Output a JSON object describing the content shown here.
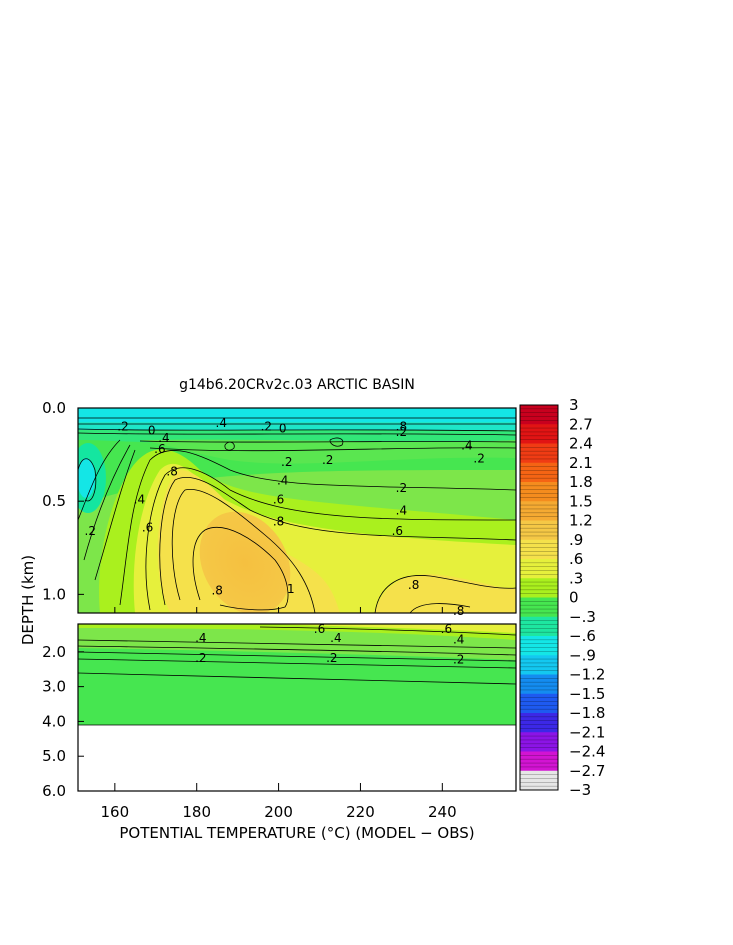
{
  "chart_data": {
    "type": "heatmap",
    "title": "g14b6.20CRv2c.03 ARCTIC BASIN",
    "xlabel": "POTENTIAL TEMPERATURE (°C) (MODEL − OBS)",
    "ylabel": "DEPTH (km)",
    "xlim": [
      151,
      258
    ],
    "x_ticks": [
      "160",
      "180",
      "200",
      "220",
      "240"
    ],
    "x_tick_values": [
      160,
      180,
      200,
      220,
      240
    ],
    "upper_panel": {
      "ylim": [
        0.0,
        1.1
      ],
      "y_ticks": [
        "0.0",
        "0.5",
        "1.0"
      ],
      "y_tick_values": [
        0.0,
        0.5,
        1.0
      ]
    },
    "lower_panel": {
      "ylim": [
        1.2,
        6.0
      ],
      "y_ticks": [
        "2.0",
        "3.0",
        "4.0",
        "5.0",
        "6.0"
      ],
      "y_tick_values": [
        2.0,
        3.0,
        4.0,
        5.0,
        6.0
      ],
      "data_bottom_depth": 4.0
    },
    "colorbar": {
      "labels": [
        "3",
        "2.7",
        "2.4",
        "2.1",
        "1.8",
        "1.5",
        "1.2",
        ".9",
        ".6",
        ".3",
        "0",
        "−.3",
        "−.6",
        "−.9",
        "−1.2",
        "−1.5",
        "−1.8",
        "−2.1",
        "−2.4",
        "−2.7",
        "−3"
      ],
      "values": [
        3.0,
        2.7,
        2.4,
        2.1,
        1.8,
        1.5,
        1.2,
        0.9,
        0.6,
        0.3,
        0.0,
        -0.3,
        -0.6,
        -0.9,
        -1.2,
        -1.5,
        -1.8,
        -2.1,
        -2.4,
        -2.7,
        -3.0
      ],
      "segment_colors": [
        "#c8001e",
        "#e11414",
        "#f03c14",
        "#f56414",
        "#f58c1e",
        "#f5aa32",
        "#f5c846",
        "#f5e14b",
        "#e6f03c",
        "#aaf01e",
        "#46e650",
        "#1ee6a0",
        "#14e6e6",
        "#14c8f0",
        "#148cf0",
        "#1e5af0",
        "#3c28e6",
        "#8c14e6",
        "#d214d2",
        "#e6e6e6",
        "#8c8c8c"
      ]
    },
    "contour_labels_upper": [
      {
        "text": ".4",
        "x": 166,
        "y": 0.49
      },
      {
        "text": ".2",
        "x": 154,
        "y": 0.66
      },
      {
        "text": ".6",
        "x": 168,
        "y": 0.64
      },
      {
        "text": ".8",
        "x": 174,
        "y": 0.34
      },
      {
        "text": ".8",
        "x": 185,
        "y": 0.98
      },
      {
        "text": "1",
        "x": 203,
        "y": 0.97
      },
      {
        "text": ".8",
        "x": 200,
        "y": 0.61
      },
      {
        "text": ".6",
        "x": 200,
        "y": 0.49
      },
      {
        "text": ".4",
        "x": 201,
        "y": 0.39
      },
      {
        "text": ".2",
        "x": 202,
        "y": 0.29
      },
      {
        "text": ".6",
        "x": 229,
        "y": 0.66
      },
      {
        "text": ".4",
        "x": 230,
        "y": 0.55
      },
      {
        "text": ".2",
        "x": 230,
        "y": 0.43
      },
      {
        "text": ".8",
        "x": 233,
        "y": 0.95
      },
      {
        "text": ".8",
        "x": 244,
        "y": 1.09
      },
      {
        "text": ".4",
        "x": 246,
        "y": 0.2
      },
      {
        "text": ".2",
        "x": 249,
        "y": 0.27
      },
      {
        "text": ".2",
        "x": 212,
        "y": 0.28
      },
      {
        "text": ".2",
        "x": 162,
        "y": 0.1
      },
      {
        "text": "0",
        "x": 169,
        "y": 0.12
      },
      {
        "text": ".4",
        "x": 172,
        "y": 0.16
      },
      {
        "text": ".6",
        "x": 171,
        "y": 0.22
      },
      {
        "text": ".4",
        "x": 186,
        "y": 0.08
      },
      {
        "text": ".2",
        "x": 197,
        "y": 0.1
      },
      {
        "text": "0",
        "x": 201,
        "y": 0.11
      },
      {
        "text": ".8",
        "x": 230,
        "y": 0.1
      },
      {
        "text": ".2",
        "x": 230,
        "y": 0.13
      }
    ],
    "contour_labels_lower": [
      {
        "text": ".6",
        "x": 210,
        "y": 1.34
      },
      {
        "text": ".6",
        "x": 241,
        "y": 1.35
      },
      {
        "text": ".4",
        "x": 181,
        "y": 1.6
      },
      {
        "text": ".4",
        "x": 214,
        "y": 1.6
      },
      {
        "text": ".4",
        "x": 244,
        "y": 1.65
      },
      {
        "text": ".2",
        "x": 181,
        "y": 2.18
      },
      {
        "text": ".2",
        "x": 213,
        "y": 2.18
      },
      {
        "text": ".2",
        "x": 244,
        "y": 2.22
      }
    ]
  }
}
